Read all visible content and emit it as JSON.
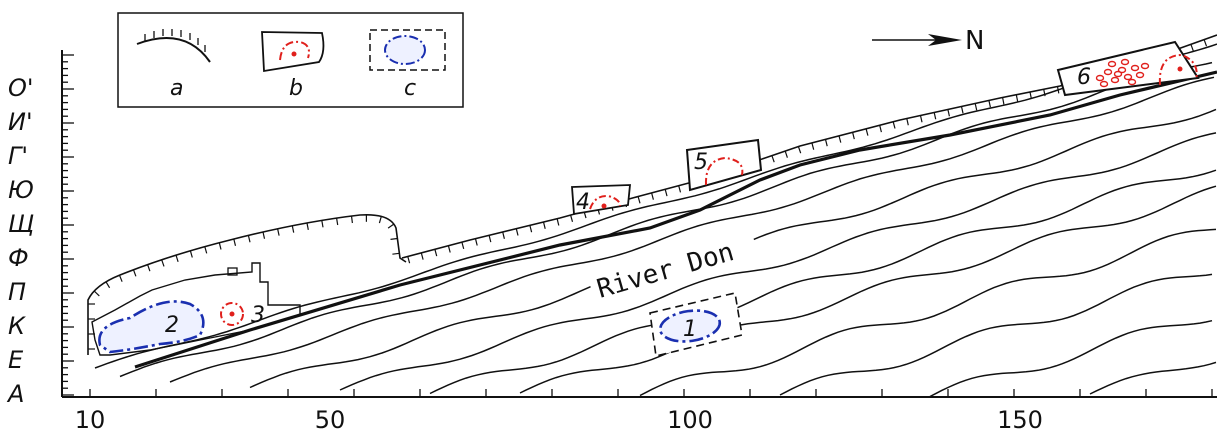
{
  "north": {
    "label": "N"
  },
  "legend": [
    {
      "key": "a",
      "symbol": "scarp-line"
    },
    {
      "key": "b",
      "symbol": "excavated-area-red-contour"
    },
    {
      "key": "c",
      "symbol": "dashed-area-blue-contour"
    }
  ],
  "river": {
    "label": "River Don"
  },
  "y_axis": {
    "labels": [
      "O'",
      "И'",
      "Г'",
      "Ю",
      "Щ",
      "Ф",
      "П",
      "К",
      "Е",
      "А"
    ]
  },
  "x_axis": {
    "labels": [
      "10",
      "50",
      "100",
      "150"
    ]
  },
  "sites": [
    {
      "id": "1",
      "color": "#1a2fb0"
    },
    {
      "id": "2",
      "color": "#1a2fb0"
    },
    {
      "id": "3",
      "color": "#e0201c"
    },
    {
      "id": "4",
      "color": "#e0201c"
    },
    {
      "id": "5",
      "color": "#e0201c"
    },
    {
      "id": "6",
      "color": "#e0201c"
    }
  ],
  "colors": {
    "red": "#e0201c",
    "blue": "#1a2fb0",
    "ink": "#111111"
  }
}
